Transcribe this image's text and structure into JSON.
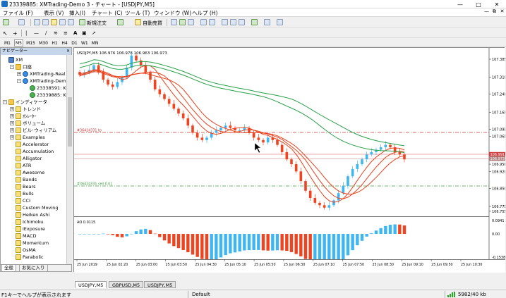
{
  "window": {
    "title": "23339885: XMTrading-Demo 3 - チャート - [USDJPY,M5]"
  },
  "menu": {
    "items": [
      "ファイル (F)",
      "表示 (V)",
      "挿入(I)",
      "チャート (C)",
      "ツール (T)",
      "ウィンドウ (W)",
      "ヘルプ (H)"
    ]
  },
  "toolbar": {
    "new_order": "新規注文",
    "auto_trading": "自動売買"
  },
  "timeframes": [
    "M1",
    "M5",
    "M15",
    "M30",
    "H1",
    "H4",
    "D1",
    "W1",
    "MN"
  ],
  "active_timeframe": "M5",
  "navigator": {
    "title": "ナビゲーター",
    "tree": [
      {
        "label": "XM",
        "depth": 0,
        "icon": "xm",
        "expander": ""
      },
      {
        "label": "口座",
        "depth": 1,
        "icon": "folder",
        "expander": "-"
      },
      {
        "label": "XMTrading-Real",
        "depth": 2,
        "icon": "acct",
        "expander": "+"
      },
      {
        "label": "XMTrading-Dem",
        "depth": 2,
        "icon": "acct",
        "expander": "-"
      },
      {
        "label": "23338591: K",
        "depth": 3,
        "icon": "user",
        "expander": ""
      },
      {
        "label": "23339885: K",
        "depth": 3,
        "icon": "user",
        "expander": ""
      },
      {
        "label": "インディケータ",
        "depth": 0,
        "icon": "folder",
        "expander": "-"
      },
      {
        "label": "トレンド",
        "depth": 1,
        "icon": "fx",
        "expander": "+"
      },
      {
        "label": "ｵｼﾚｰﾀｰ",
        "depth": 1,
        "icon": "fx",
        "expander": "+"
      },
      {
        "label": "ボリューム",
        "depth": 1,
        "icon": "fx",
        "expander": "+"
      },
      {
        "label": "ビル･ウィリアム",
        "depth": 1,
        "icon": "fx",
        "expander": "+"
      },
      {
        "label": "Examples",
        "depth": 1,
        "icon": "fx",
        "expander": "+"
      },
      {
        "label": "Accelerator",
        "depth": 1,
        "icon": "fx",
        "expander": ""
      },
      {
        "label": "Accumulation",
        "depth": 1,
        "icon": "fx",
        "expander": ""
      },
      {
        "label": "Alligator",
        "depth": 1,
        "icon": "fx",
        "expander": ""
      },
      {
        "label": "ATR",
        "depth": 1,
        "icon": "fx",
        "expander": ""
      },
      {
        "label": "Awesome",
        "depth": 1,
        "icon": "fx",
        "expander": ""
      },
      {
        "label": "Bands",
        "depth": 1,
        "icon": "fx",
        "expander": ""
      },
      {
        "label": "Bears",
        "depth": 1,
        "icon": "fx",
        "expander": ""
      },
      {
        "label": "Bulls",
        "depth": 1,
        "icon": "fx",
        "expander": ""
      },
      {
        "label": "CCI",
        "depth": 1,
        "icon": "fx",
        "expander": ""
      },
      {
        "label": "Custom Moving",
        "depth": 1,
        "icon": "fx",
        "expander": ""
      },
      {
        "label": "Heiken Ashi",
        "depth": 1,
        "icon": "fx",
        "expander": ""
      },
      {
        "label": "Ichimoku",
        "depth": 1,
        "icon": "fx",
        "expander": ""
      },
      {
        "label": "iExposure",
        "depth": 1,
        "icon": "fx",
        "expander": ""
      },
      {
        "label": "MACD",
        "depth": 1,
        "icon": "fx",
        "expander": ""
      },
      {
        "label": "Momentum",
        "depth": 1,
        "icon": "fx",
        "expander": ""
      },
      {
        "label": "OsMA",
        "depth": 1,
        "icon": "fx",
        "expander": ""
      },
      {
        "label": "Parabolic",
        "depth": 1,
        "icon": "fx",
        "expander": ""
      }
    ],
    "tabs": [
      "全般",
      "お気に入り"
    ]
  },
  "chart": {
    "header": "USDJPY,M5  106.976 106.978 106.963 106.973",
    "order_line_1": "#36424331 tp",
    "order_line_2": "#36424331 sell 0.01",
    "price_labels": [
      "107.385",
      "107.310",
      "107.240",
      "107.165",
      "107.095",
      "107.065",
      "106.950",
      "106.920",
      "106.850",
      "106.775",
      "106.755"
    ],
    "bid_label": "106.991",
    "ask_label": "106.973",
    "osc_header": "AO 0.0115",
    "osc_labels": [
      "0.0941",
      "0.00",
      "-0.1538"
    ],
    "time_labels": [
      "25 Jun 2019",
      "25 Jun 02:20",
      "25 Jun 03:00",
      "25 Jun 03:50",
      "25 Jun 04:30",
      "25 Jun 05:10",
      "25 Jun 05:50",
      "25 Jun 06:30",
      "25 Jun 07:10",
      "25 Jun 07:50",
      "25 Jun 08:30",
      "25 Jun 09:10",
      "25 Jun 09:50",
      "25 Jun 10:30"
    ],
    "colors": {
      "bull": "#3fb6f2",
      "bear": "#f0431f",
      "ma_red": "#e8401a",
      "ma_green": "#27a047",
      "order_line": "#d03030",
      "sl_line": "#3c9c3c"
    }
  },
  "chart_tabs": [
    "USDJPY,M5",
    "GBPUSD,M5",
    "USDJPY,M5"
  ],
  "active_chart_tab": 0,
  "status": {
    "help": "F1キーでヘルプが表示されます",
    "profile": "Default",
    "traffic": "5982/40 kb"
  },
  "chart_data": {
    "type": "candlestick",
    "symbol": "USDJPY",
    "timeframe": "M5",
    "price_axis_labels": [
      107.385,
      107.31,
      107.24,
      107.165,
      107.095,
      107.065,
      106.95,
      106.92,
      106.85,
      106.775,
      106.755
    ],
    "close_series_estimated": [
      107.32,
      107.33,
      107.34,
      107.36,
      107.33,
      107.3,
      107.28,
      107.27,
      107.29,
      107.31,
      107.35,
      107.4,
      107.38,
      107.36,
      107.33,
      107.3,
      107.26,
      107.24,
      107.22,
      107.2,
      107.18,
      107.16,
      107.14,
      107.11,
      107.08,
      107.06,
      107.05,
      107.06,
      107.08,
      107.09,
      107.1,
      107.11,
      107.1,
      107.09,
      107.09,
      107.1,
      107.08,
      107.06,
      107.05,
      107.04,
      107.06,
      107.05,
      107.03,
      107.0,
      106.97,
      106.95,
      106.92,
      106.88,
      106.84,
      106.81,
      106.79,
      106.78,
      106.77,
      106.78,
      106.8,
      106.83,
      106.86,
      106.9,
      106.93,
      106.95,
      106.97,
      106.99,
      107.0,
      107.01,
      107.02,
      107.03,
      107.02,
      107.0,
      106.99,
      106.97
    ],
    "oscillator": {
      "name": "AO",
      "current": 0.0115,
      "max": 0.0941,
      "min": -0.1538
    }
  }
}
